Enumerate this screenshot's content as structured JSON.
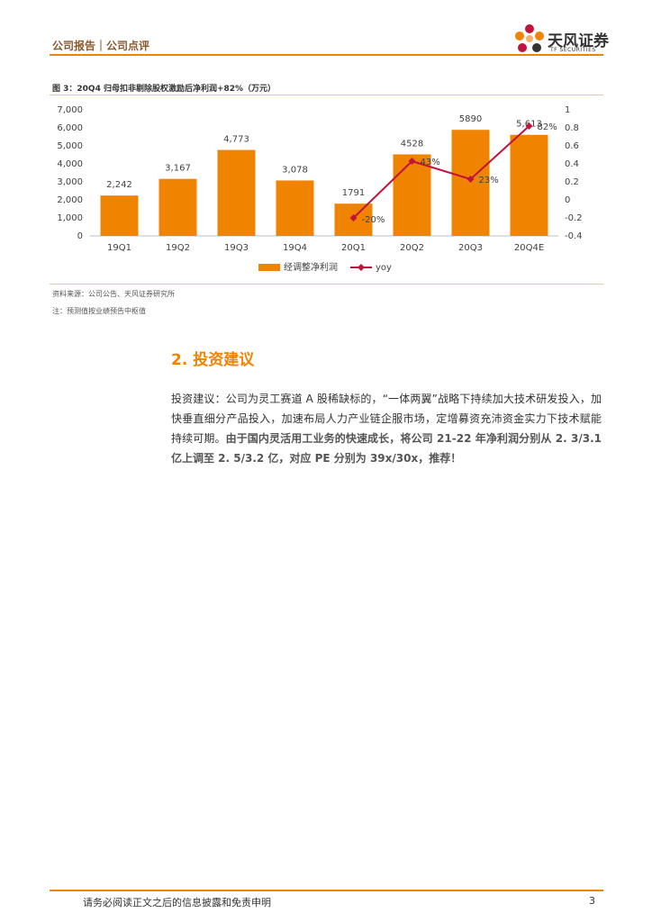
{
  "header": {
    "left": "公司报告｜公司点评",
    "logo_cn": "天风证券",
    "logo_en": "TF SECURITIES"
  },
  "figure": {
    "caption": "图 3：20Q4 归母扣非剔除股权激励后净利润+82%（万元）"
  },
  "chart_data": {
    "type": "bar",
    "categories": [
      "19Q1",
      "19Q2",
      "19Q3",
      "19Q4",
      "20Q1",
      "20Q2",
      "20Q3",
      "20Q4E"
    ],
    "series": [
      {
        "name": "经调整净利润",
        "type": "bar",
        "color": "#f08300",
        "values": [
          2242,
          3167,
          4773,
          3078,
          1791,
          4528,
          5890,
          5613
        ],
        "value_labels": [
          "2,242",
          "3,167",
          "4,773",
          "3,078",
          "1791",
          "4528",
          "5890",
          "5,613"
        ]
      },
      {
        "name": "yoy",
        "type": "line",
        "axis": "y2",
        "color": "#c0143c",
        "values": [
          null,
          null,
          null,
          null,
          -0.2,
          0.43,
          0.23,
          0.82
        ],
        "value_labels": [
          null,
          null,
          null,
          null,
          "-20%",
          "43%",
          "23%",
          "82%"
        ]
      }
    ],
    "ylim": [
      0,
      7000
    ],
    "yticks": [
      0,
      {
        "value": 1000,
        "label": "1,000"
      },
      {
        "value": 2000,
        "label": "2,000"
      },
      {
        "value": 3000,
        "label": "3,000"
      },
      {
        "value": 4000,
        "label": "4,000"
      },
      {
        "value": 5000,
        "label": "5,000"
      },
      {
        "value": 6000,
        "label": "6,000"
      },
      {
        "value": 7000,
        "label": "7,000"
      }
    ],
    "y2lim": [
      -0.4,
      1
    ],
    "y2ticks": [
      -0.4,
      -0.2,
      0,
      0.2,
      0.4,
      0.6,
      0.8,
      1
    ],
    "legend": "bottom"
  },
  "source": "资料来源：公司公告、天风证券研究所",
  "note": "注：预测值按业绩预告中枢值",
  "section": {
    "title": "2. 投资建议",
    "paragraph": [
      "投资建议：公司为灵工赛道 A 股稀缺标的，“一体两翼”战略下持续加大技术研发投入，加快垂直细分产品投入，加速布局人力产业链企服市场，定增募资充沛资金实力下技术赋能持续可期。",
      "由于国内灵活用工业务的快速成长，将公司 21-22 年净利润分别从 2. 3/3.1 亿上调至 2. 5/3.2 亿，对应 PE 分别为 39x/30x，推荐！"
    ]
  },
  "footer": {
    "disclaimer": "请务必阅读正文之后的信息披露和免责申明",
    "page": "3"
  }
}
